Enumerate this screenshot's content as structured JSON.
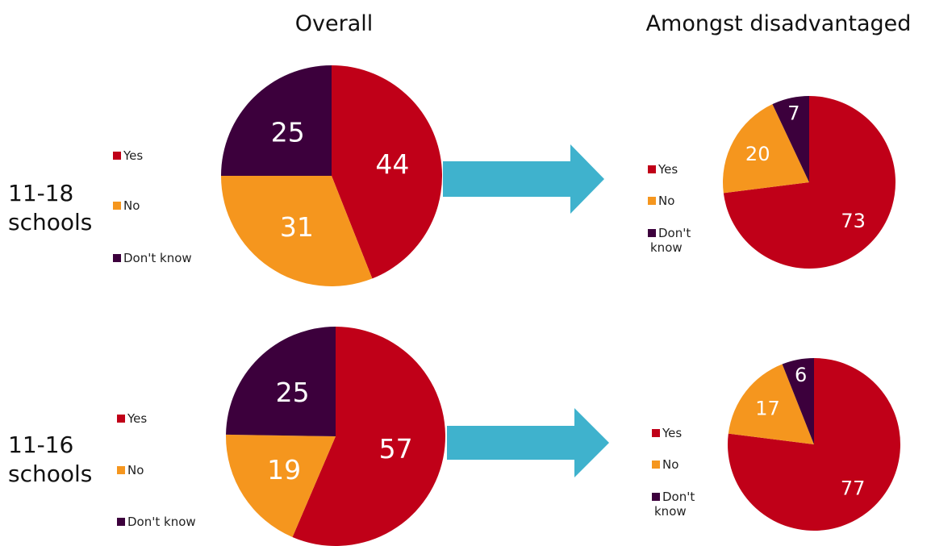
{
  "header": {
    "overall": "Overall",
    "disadvantaged": "Amongst disadvantaged"
  },
  "rows": [
    {
      "label_line1": "11-18",
      "label_line2": "schools"
    },
    {
      "label_line1": "11-16",
      "label_line2": "schools"
    }
  ],
  "legend": {
    "yes": "Yes",
    "no": "No",
    "dont_know": "Don't know",
    "dont_line1": "Don't",
    "dont_line2": "know"
  },
  "colors": {
    "yes": "#c00018",
    "no": "#f5961e",
    "dont_know": "#3c003c",
    "arrow": "#3fb2cd"
  },
  "chart_data": [
    {
      "type": "pie",
      "group": "11-18 schools",
      "panel": "Overall",
      "categories": [
        "Yes",
        "No",
        "Don't know"
      ],
      "values": [
        44,
        31,
        25
      ]
    },
    {
      "type": "pie",
      "group": "11-18 schools",
      "panel": "Amongst disadvantaged",
      "categories": [
        "Yes",
        "No",
        "Don't know"
      ],
      "values": [
        73,
        20,
        7
      ]
    },
    {
      "type": "pie",
      "group": "11-16 schools",
      "panel": "Overall",
      "categories": [
        "Yes",
        "No",
        "Don't know"
      ],
      "values": [
        57,
        19,
        25
      ]
    },
    {
      "type": "pie",
      "group": "11-16 schools",
      "panel": "Amongst disadvantaged",
      "categories": [
        "Yes",
        "No",
        "Don't know"
      ],
      "values": [
        77,
        17,
        6
      ]
    }
  ]
}
